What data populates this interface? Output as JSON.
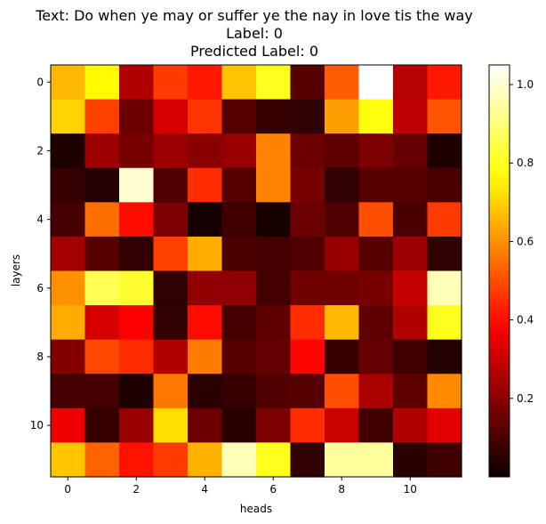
{
  "chart_data": {
    "type": "heatmap",
    "title": [
      "Text: Do when ye may or suffer ye the nay in love tis the way",
      "Label: 0",
      "Predicted Label: 0"
    ],
    "xlabel": "heads",
    "ylabel": "layers",
    "colormap": "hot",
    "x_ticks": [
      0,
      2,
      4,
      6,
      8,
      10
    ],
    "y_ticks": [
      0,
      2,
      4,
      6,
      8,
      10
    ],
    "x_tick_labels": [
      "0",
      "2",
      "4",
      "6",
      "8",
      "10"
    ],
    "y_tick_labels": [
      "0",
      "2",
      "4",
      "6",
      "8",
      "10"
    ],
    "colorbar": {
      "range": [
        0.0,
        1.05
      ],
      "ticks": [
        0.2,
        0.4,
        0.6,
        0.8,
        1.0
      ],
      "tick_labels": [
        "0.2",
        "0.4",
        "0.6",
        "0.8",
        "1.0"
      ]
    },
    "values": [
      [
        0.66,
        0.76,
        0.26,
        0.47,
        0.42,
        0.68,
        0.8,
        0.12,
        0.52,
        1.05,
        0.27,
        0.42
      ],
      [
        0.7,
        0.48,
        0.15,
        0.32,
        0.46,
        0.12,
        0.07,
        0.06,
        0.62,
        0.78,
        0.28,
        0.51
      ],
      [
        0.03,
        0.23,
        0.17,
        0.23,
        0.2,
        0.22,
        0.58,
        0.15,
        0.13,
        0.18,
        0.14,
        0.03
      ],
      [
        0.07,
        0.04,
        1.0,
        0.11,
        0.45,
        0.12,
        0.58,
        0.17,
        0.06,
        0.12,
        0.12,
        0.1
      ],
      [
        0.09,
        0.55,
        0.4,
        0.18,
        0.02,
        0.08,
        0.02,
        0.15,
        0.11,
        0.5,
        0.1,
        0.47
      ],
      [
        0.24,
        0.12,
        0.06,
        0.48,
        0.64,
        0.1,
        0.09,
        0.11,
        0.22,
        0.12,
        0.23,
        0.06
      ],
      [
        0.6,
        0.86,
        0.82,
        0.06,
        0.21,
        0.21,
        0.09,
        0.16,
        0.16,
        0.17,
        0.29,
        0.97
      ],
      [
        0.64,
        0.32,
        0.38,
        0.06,
        0.4,
        0.09,
        0.13,
        0.45,
        0.66,
        0.13,
        0.26,
        0.8
      ],
      [
        0.19,
        0.49,
        0.45,
        0.26,
        0.57,
        0.12,
        0.14,
        0.39,
        0.07,
        0.14,
        0.08,
        0.04
      ],
      [
        0.09,
        0.09,
        0.03,
        0.56,
        0.05,
        0.07,
        0.11,
        0.12,
        0.5,
        0.25,
        0.13,
        0.59
      ],
      [
        0.36,
        0.07,
        0.22,
        0.72,
        0.15,
        0.05,
        0.18,
        0.45,
        0.3,
        0.08,
        0.26,
        0.34
      ],
      [
        0.68,
        0.53,
        0.41,
        0.47,
        0.65,
        0.97,
        0.8,
        0.06,
        0.94,
        0.94,
        0.05,
        0.08
      ]
    ]
  }
}
